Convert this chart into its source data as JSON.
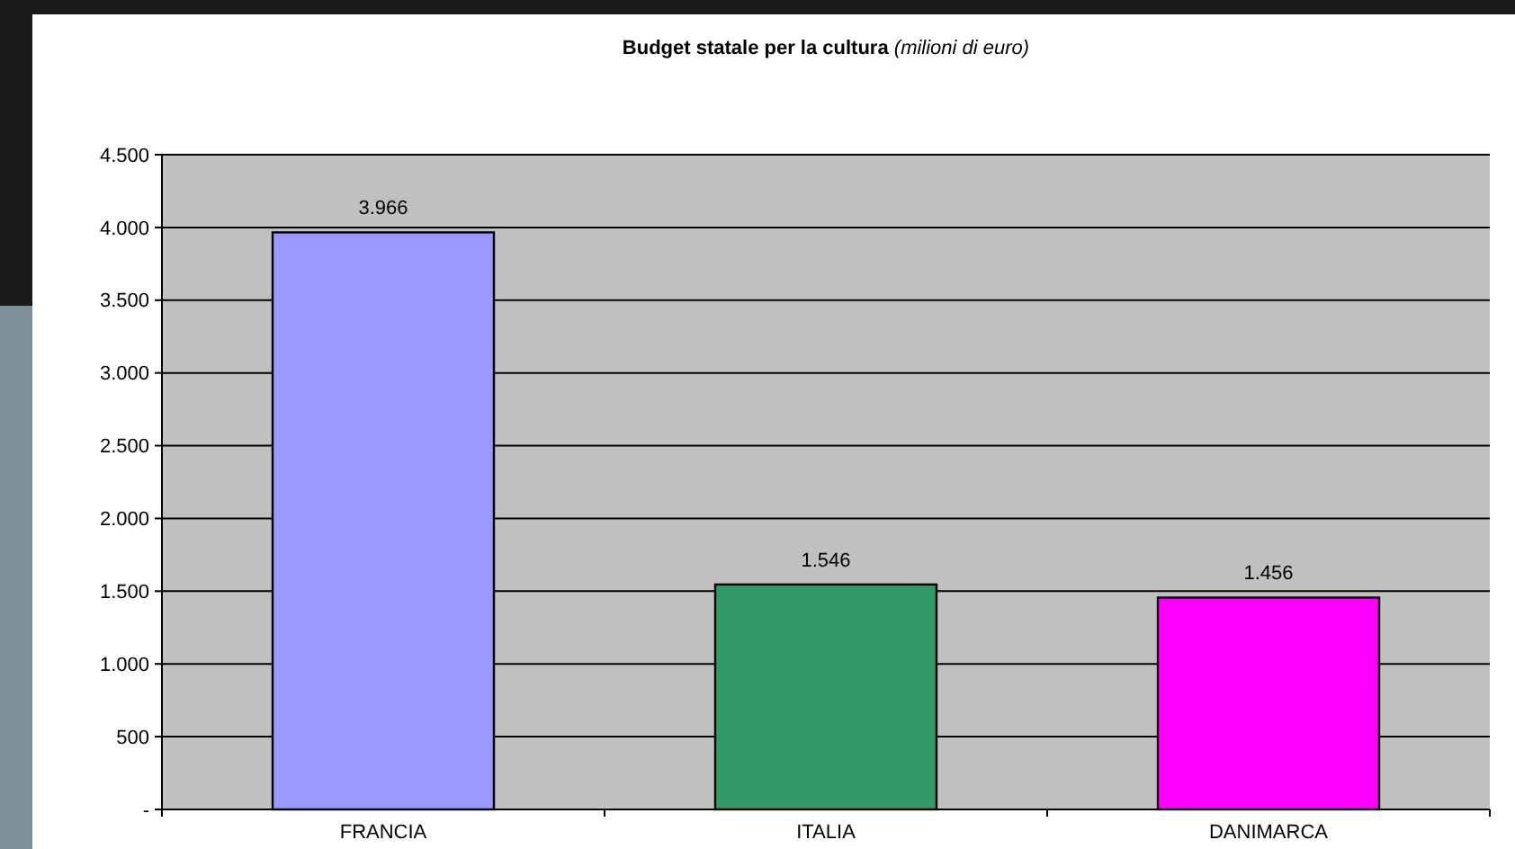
{
  "chart_data": {
    "type": "bar",
    "title": "Budget statale per la cultura",
    "subtitle": "(milioni di euro)",
    "categories": [
      "FRANCIA",
      "ITALIA",
      "DANIMARCA"
    ],
    "values": [
      3966,
      1546,
      1456
    ],
    "colors": [
      "#9999ff",
      "#339966",
      "#ff00ff"
    ],
    "value_labels": [
      "3.966",
      "1.546",
      "1.456"
    ],
    "ylim": [
      0,
      4500
    ],
    "yticks": [
      {
        "value": 0,
        "label": "-"
      },
      {
        "value": 500,
        "label": "500"
      },
      {
        "value": 1000,
        "label": "1.000"
      },
      {
        "value": 1500,
        "label": "1.500"
      },
      {
        "value": 2000,
        "label": "2.000"
      },
      {
        "value": 2500,
        "label": "2.500"
      },
      {
        "value": 3000,
        "label": "3.000"
      },
      {
        "value": 3500,
        "label": "3.500"
      },
      {
        "value": 4000,
        "label": "4.000"
      },
      {
        "value": 4500,
        "label": "4.500"
      }
    ],
    "grid": "y"
  }
}
